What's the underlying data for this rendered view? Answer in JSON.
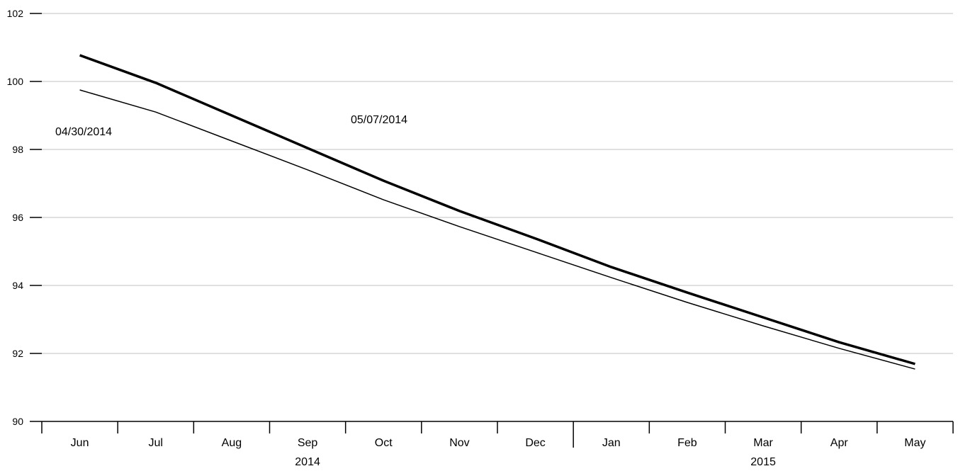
{
  "chart_data": {
    "type": "line",
    "categories": [
      "Jun",
      "Jul",
      "Aug",
      "Sep",
      "Oct",
      "Nov",
      "Dec",
      "Jan",
      "Feb",
      "Mar",
      "Apr",
      "May"
    ],
    "category_years": [
      null,
      null,
      null,
      "2014",
      null,
      null,
      null,
      null,
      null,
      "2015",
      null,
      null
    ],
    "series": [
      {
        "name": "04/30/2014",
        "color": "#000000",
        "values": [
          99.75,
          99.1,
          98.25,
          97.4,
          96.52,
          95.73,
          94.98,
          94.23,
          93.5,
          92.81,
          92.15,
          91.54
        ]
      },
      {
        "name": "05/07/2014",
        "color": "#000000",
        "values": [
          100.77,
          99.96,
          99.0,
          98.04,
          97.08,
          96.19,
          95.38,
          94.54,
          93.79,
          93.06,
          92.33,
          91.69
        ]
      }
    ],
    "ylim": [
      90,
      102
    ],
    "yticks": [
      90,
      92,
      94,
      96,
      98,
      100,
      102
    ],
    "grid": true
  }
}
